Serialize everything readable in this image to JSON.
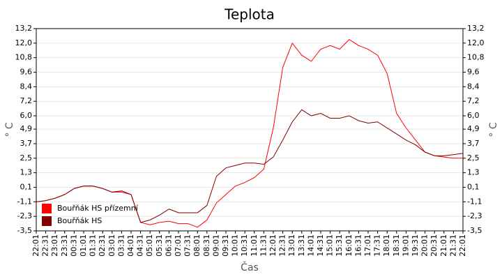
{
  "chart_data": {
    "type": "line",
    "title": "Teplota",
    "x_label": "Čas",
    "y_label": "° C",
    "y2_label": "° C",
    "categories": [
      "22:01",
      "22:31",
      "23:01",
      "23:31",
      "00:31",
      "01:01",
      "01:31",
      "02:31",
      "03:01",
      "03:31",
      "04:01",
      "04:31",
      "05:01",
      "05:31",
      "06:31",
      "07:01",
      "07:31",
      "08:01",
      "08:31",
      "09:01",
      "09:31",
      "10:01",
      "10:31",
      "11:01",
      "11:31",
      "12:01",
      "12:31",
      "13:01",
      "13:31",
      "14:01",
      "14:31",
      "15:01",
      "15:31",
      "16:01",
      "16:31",
      "17:01",
      "17:31",
      "18:01",
      "18:31",
      "19:01",
      "19:31",
      "20:01",
      "20:31",
      "21:01",
      "21:31",
      "22:01"
    ],
    "series": [
      {
        "name": "Bouřňák HS přízemní",
        "color": "#ff0000",
        "values": [
          -1.1,
          -1.0,
          -0.8,
          -0.5,
          0.0,
          0.2,
          0.2,
          0.0,
          -0.3,
          -0.3,
          -0.5,
          -2.8,
          -3.0,
          -2.8,
          -2.7,
          -2.9,
          -2.9,
          -3.2,
          -2.6,
          -1.2,
          -0.5,
          0.2,
          0.5,
          0.9,
          1.6,
          5.0,
          10.0,
          12.0,
          11.0,
          10.5,
          11.5,
          11.8,
          11.5,
          12.3,
          11.8,
          11.5,
          11.0,
          9.5,
          6.2,
          5.0,
          4.0,
          3.0,
          2.7,
          2.6,
          2.5,
          2.5
        ]
      },
      {
        "name": "Bouřňák HS",
        "color": "#800000",
        "values": [
          -1.1,
          -1.0,
          -0.8,
          -0.5,
          0.0,
          0.2,
          0.2,
          0.0,
          -0.3,
          -0.2,
          -0.5,
          -2.8,
          -2.6,
          -2.2,
          -1.7,
          -2.0,
          -2.0,
          -2.0,
          -1.4,
          1.0,
          1.7,
          1.9,
          2.1,
          2.1,
          2.0,
          2.6,
          4.0,
          5.5,
          6.5,
          6.0,
          6.2,
          5.8,
          5.8,
          6.0,
          5.6,
          5.4,
          5.5,
          5.0,
          4.5,
          4.0,
          3.6,
          3.0,
          2.7,
          2.7,
          2.8,
          2.9
        ]
      }
    ],
    "ylim": [
      -3.5,
      13.2
    ],
    "yticks": [
      {
        "value": -3.5,
        "label": "-3,5"
      },
      {
        "value": -2.3,
        "label": "-2,3"
      },
      {
        "value": -1.1,
        "label": "-1,1"
      },
      {
        "value": 0.1,
        "label": "0,1"
      },
      {
        "value": 1.3,
        "label": "1,3"
      },
      {
        "value": 2.5,
        "label": "2,5"
      },
      {
        "value": 3.7,
        "label": "3,7"
      },
      {
        "value": 4.9,
        "label": "4,9"
      },
      {
        "value": 6.0,
        "label": "6,0"
      },
      {
        "value": 7.2,
        "label": "7,2"
      },
      {
        "value": 8.4,
        "label": "8,4"
      },
      {
        "value": 9.6,
        "label": "9,6"
      },
      {
        "value": 10.8,
        "label": "10,8"
      },
      {
        "value": 12.0,
        "label": "12,0"
      },
      {
        "value": 13.2,
        "label": "13,2"
      }
    ],
    "y2lim": [
      -3.5,
      13.2
    ],
    "y2ticks": [
      {
        "value": -3.5,
        "label": "-3,5"
      },
      {
        "value": -2.3,
        "label": "-2,3"
      },
      {
        "value": -1.1,
        "label": "-1,1"
      },
      {
        "value": 0.1,
        "label": "0,1"
      },
      {
        "value": 1.3,
        "label": "1,3"
      },
      {
        "value": 2.5,
        "label": "2,5"
      },
      {
        "value": 3.7,
        "label": "3,7"
      },
      {
        "value": 4.9,
        "label": "4,9"
      },
      {
        "value": 6.0,
        "label": "6,0"
      },
      {
        "value": 7.2,
        "label": "7,2"
      },
      {
        "value": 8.4,
        "label": "8,4"
      },
      {
        "value": 9.6,
        "label": "9,6"
      },
      {
        "value": 10.8,
        "label": "10,8"
      },
      {
        "value": 12.0,
        "label": "12,0"
      },
      {
        "value": 13.2,
        "label": "13,2"
      }
    ],
    "grid": true,
    "legend": "lower left"
  }
}
